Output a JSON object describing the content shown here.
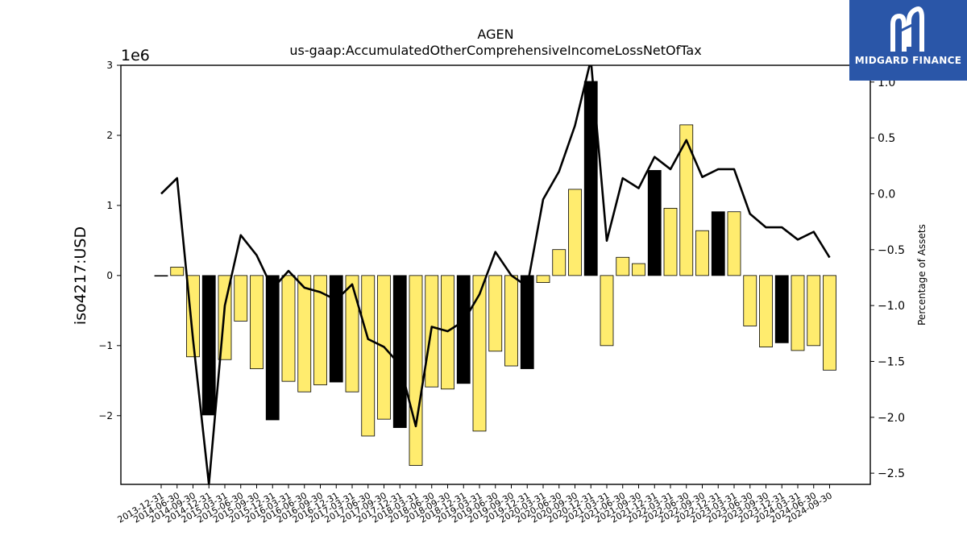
{
  "logo": {
    "text": "MIDGARD FINANCE",
    "icon": "midgard-m-logo-icon",
    "background": "#2a56a8"
  },
  "chart_data": {
    "type": "bar",
    "title": "AGEN",
    "subtitle": "us-gaap:AccumulatedOtherComprehensiveIncomeLossNetOfTax",
    "ylabel": "iso4217:USD",
    "y_offset_label": "1e6",
    "y2label": "Percentage of Assets",
    "ylim": [
      -2.98,
      3.0
    ],
    "y2lim": [
      -2.6,
      1.15
    ],
    "yticks": [
      -2,
      -1,
      0,
      1,
      2,
      3
    ],
    "y2ticks": [
      -2.5,
      -2.0,
      -1.5,
      -1.0,
      -0.5,
      0.0,
      0.5,
      1.0
    ],
    "grid": false,
    "colors": {
      "bar_default": "#ffec6e",
      "bar_highlight": "#000000",
      "line": "#000000"
    },
    "categories": [
      "2013-12-31",
      "2014-06-30",
      "2014-09-30",
      "2014-12-31",
      "2015-03-31",
      "2015-06-30",
      "2015-09-30",
      "2015-12-31",
      "2016-03-31",
      "2016-06-30",
      "2016-09-30",
      "2016-12-31",
      "2017-03-31",
      "2017-06-30",
      "2017-09-30",
      "2017-12-31",
      "2018-03-31",
      "2018-06-30",
      "2018-09-30",
      "2018-12-31",
      "2019-03-31",
      "2019-06-30",
      "2019-09-30",
      "2019-12-31",
      "2020-03-31",
      "2020-06-30",
      "2020-09-30",
      "2020-12-31",
      "2021-03-31",
      "2021-06-30",
      "2021-09-30",
      "2021-12-31",
      "2022-03-31",
      "2022-06-30",
      "2022-09-30",
      "2022-12-31",
      "2023-03-31",
      "2023-06-30",
      "2023-09-30",
      "2023-12-31",
      "2024-03-31",
      "2024-06-30",
      "2024-09-30"
    ],
    "series": [
      {
        "type": "bar",
        "axis": "left",
        "values": [
          0.0,
          0.12,
          -1.16,
          -1.99,
          -1.2,
          -0.65,
          -1.33,
          -2.06,
          -1.51,
          -1.66,
          -1.56,
          -1.52,
          -1.66,
          -2.29,
          -2.05,
          -2.17,
          -2.71,
          -1.59,
          -1.62,
          -1.54,
          -2.22,
          -1.08,
          -1.29,
          -1.33,
          -0.1,
          0.37,
          1.23,
          2.77,
          -1.0,
          0.26,
          0.17,
          1.5,
          0.96,
          2.15,
          0.64,
          0.91,
          0.91,
          -0.72,
          -1.02,
          -0.96,
          -1.07,
          -1.0,
          -1.35
        ],
        "highlight": [
          false,
          false,
          false,
          true,
          false,
          false,
          false,
          true,
          false,
          false,
          false,
          true,
          false,
          false,
          false,
          true,
          false,
          false,
          false,
          true,
          false,
          false,
          false,
          true,
          false,
          false,
          false,
          true,
          false,
          false,
          false,
          true,
          false,
          false,
          false,
          true,
          false,
          false,
          false,
          true,
          false,
          false,
          false
        ]
      },
      {
        "type": "line",
        "axis": "right",
        "values": [
          0.0,
          0.14,
          -1.3,
          -2.6,
          -1.0,
          -0.37,
          -0.55,
          -0.85,
          -0.69,
          -0.84,
          -0.88,
          -0.95,
          -0.81,
          -1.3,
          -1.37,
          -1.53,
          -2.08,
          -1.19,
          -1.23,
          -1.14,
          -0.9,
          -0.52,
          -0.73,
          -0.83,
          -0.05,
          0.2,
          0.61,
          1.2,
          -0.42,
          0.14,
          0.05,
          0.33,
          0.22,
          0.48,
          0.15,
          0.22,
          0.22,
          -0.18,
          -0.3,
          -0.3,
          -0.41,
          -0.34,
          -0.57
        ]
      }
    ]
  }
}
